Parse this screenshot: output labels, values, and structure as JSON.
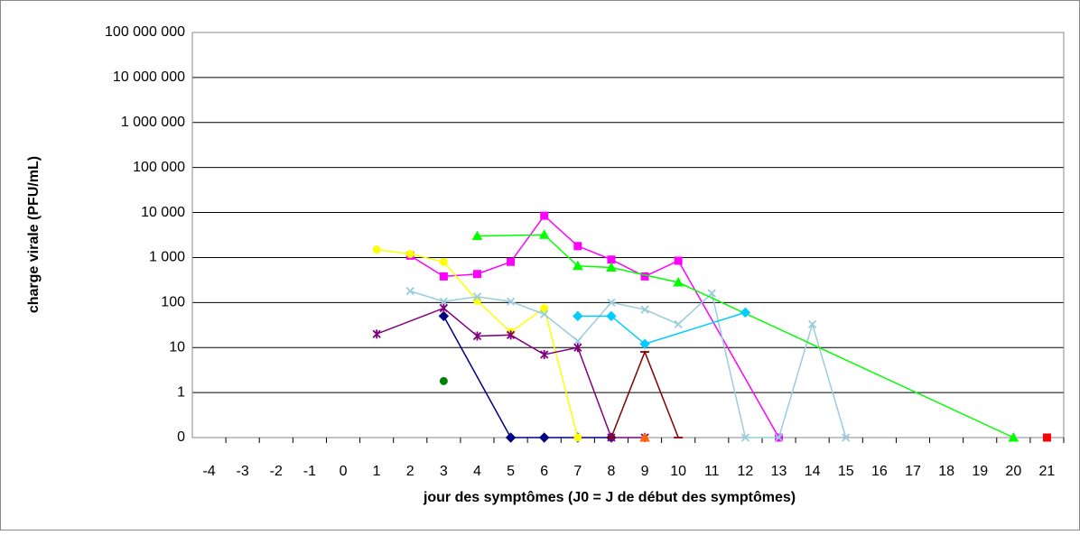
{
  "chart_data": {
    "type": "line",
    "yscale": "log",
    "grid": true,
    "ylabel": "charge virale (PFU/mL)",
    "xlabel": "jour des symptômes (J0 = J de début des symptômes)",
    "ylim": [
      0,
      100000000
    ],
    "yticks": [
      0,
      1,
      10,
      100,
      {
        "value": 1000,
        "label": "1 000"
      },
      {
        "value": 10000,
        "label": "10 000"
      },
      {
        "value": 100000,
        "label": "100 000"
      },
      {
        "value": 1000000,
        "label": "1 000 000"
      },
      {
        "value": 10000000,
        "label": "10 000 000"
      },
      {
        "value": 100000000,
        "label": "100 000 000"
      }
    ],
    "xlim": [
      -4.5,
      21.5
    ],
    "xticks": [
      -4,
      -3,
      -2,
      -1,
      0,
      1,
      2,
      3,
      4,
      5,
      6,
      7,
      8,
      9,
      10,
      11,
      12,
      13,
      14,
      15,
      16,
      17,
      18,
      19,
      20,
      21
    ],
    "series": [
      {
        "color": "#000080",
        "marker": "diamond",
        "x": [
          3,
          5,
          6,
          7,
          8
        ],
        "values": [
          50,
          0,
          0,
          0,
          0
        ]
      },
      {
        "color": "#ff00ff",
        "marker": "square",
        "x": [
          2,
          3,
          4,
          5,
          6,
          7,
          8,
          9,
          10,
          13
        ],
        "values": [
          1100,
          380,
          430,
          800,
          8500,
          1800,
          900,
          380,
          850,
          0
        ]
      },
      {
        "color": "#ffff00",
        "marker": "circle",
        "x": [
          1,
          2,
          3,
          4,
          5,
          6,
          7
        ],
        "values": [
          1500,
          1200,
          800,
          110,
          22,
          75,
          0
        ]
      },
      {
        "color": "#99ccdd",
        "marker": "x",
        "x": [
          2,
          3,
          4,
          5,
          6,
          7,
          8,
          9,
          10,
          11,
          12,
          13,
          14,
          15
        ],
        "values": [
          180,
          105,
          135,
          105,
          55,
          14,
          100,
          70,
          33,
          160,
          0,
          0,
          33,
          0
        ]
      },
      {
        "color": "#800080",
        "marker": "star",
        "x": [
          1,
          3,
          4,
          5,
          6,
          7,
          8,
          9
        ],
        "values": [
          20,
          75,
          18,
          19,
          7,
          10,
          0,
          0
        ]
      },
      {
        "color": "#00ff00",
        "marker": "triangle",
        "x": [
          4,
          6,
          7,
          8,
          10,
          20
        ],
        "values": [
          3000,
          3200,
          650,
          600,
          280,
          0
        ]
      },
      {
        "color": "#008000",
        "marker": "circle",
        "x": [
          3
        ],
        "values": [
          1.8
        ]
      },
      {
        "color": "#00ccff",
        "marker": "diamond",
        "x": [
          7,
          8,
          9,
          12
        ],
        "values": [
          50,
          50,
          12,
          60
        ]
      },
      {
        "color": "#800000",
        "marker": "dash",
        "x": [
          8,
          9,
          10
        ],
        "values": [
          0,
          8,
          0
        ]
      },
      {
        "color": "#ff6600",
        "marker": "triangle",
        "x": [
          9
        ],
        "values": [
          0
        ]
      },
      {
        "color": "#ff0000",
        "marker": "square",
        "x": [
          21
        ],
        "values": [
          0
        ]
      }
    ]
  }
}
